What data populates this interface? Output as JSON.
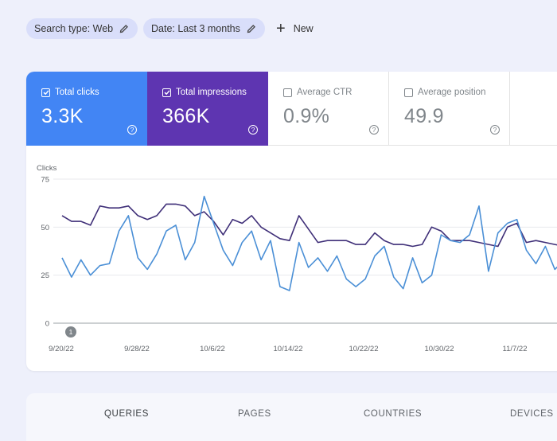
{
  "filters": {
    "search_type": "Search type: Web",
    "date": "Date: Last 3 months",
    "new_label": "New"
  },
  "metrics": [
    {
      "label": "Total clicks",
      "value": "3.3K",
      "checked": true,
      "color": "#4285f4"
    },
    {
      "label": "Total impressions",
      "value": "366K",
      "checked": true,
      "color": "#5e35b1"
    },
    {
      "label": "Average CTR",
      "value": "0.9%",
      "checked": false
    },
    {
      "label": "Average position",
      "value": "49.9",
      "checked": false
    }
  ],
  "help_glyph": "?",
  "chart_data": {
    "type": "line",
    "ylabel": "Clicks",
    "ylim": [
      0,
      75
    ],
    "yticks": [
      "75",
      "50",
      "25",
      "0"
    ],
    "xtick_labels": [
      "9/20/22",
      "9/28/22",
      "10/6/22",
      "10/14/22",
      "10/22/22",
      "10/30/22",
      "11/7/22"
    ],
    "annotation": "1",
    "series": [
      {
        "color": "#4a8fd6",
        "axis": "clicks",
        "values": [
          34,
          24,
          33,
          25,
          30,
          31,
          48,
          56,
          34,
          28,
          36,
          48,
          51,
          33,
          42,
          66,
          52,
          38,
          30,
          42,
          48,
          33,
          43,
          19,
          17,
          42,
          29,
          34,
          27,
          35,
          23,
          19,
          23,
          35,
          40,
          24,
          18,
          34,
          21,
          25,
          46,
          43,
          42,
          46,
          61,
          27,
          47,
          52,
          54,
          38,
          31,
          40,
          28,
          33,
          36,
          42
        ]
      },
      {
        "color": "#3f2f78",
        "axis": "impressions",
        "values": [
          56,
          53,
          53,
          51,
          61,
          60,
          60,
          61,
          56,
          54,
          56,
          62,
          62,
          61,
          56,
          58,
          53,
          46,
          54,
          52,
          56,
          50,
          47,
          44,
          43,
          56,
          49,
          42,
          43,
          43,
          43,
          41,
          41,
          47,
          43,
          41,
          41,
          40,
          41,
          50,
          48,
          43,
          43,
          43,
          42,
          41,
          40,
          50,
          52,
          42,
          43,
          42,
          41,
          40,
          40,
          39
        ]
      }
    ]
  },
  "tabs": [
    "QUERIES",
    "PAGES",
    "COUNTRIES",
    "DEVICES"
  ]
}
